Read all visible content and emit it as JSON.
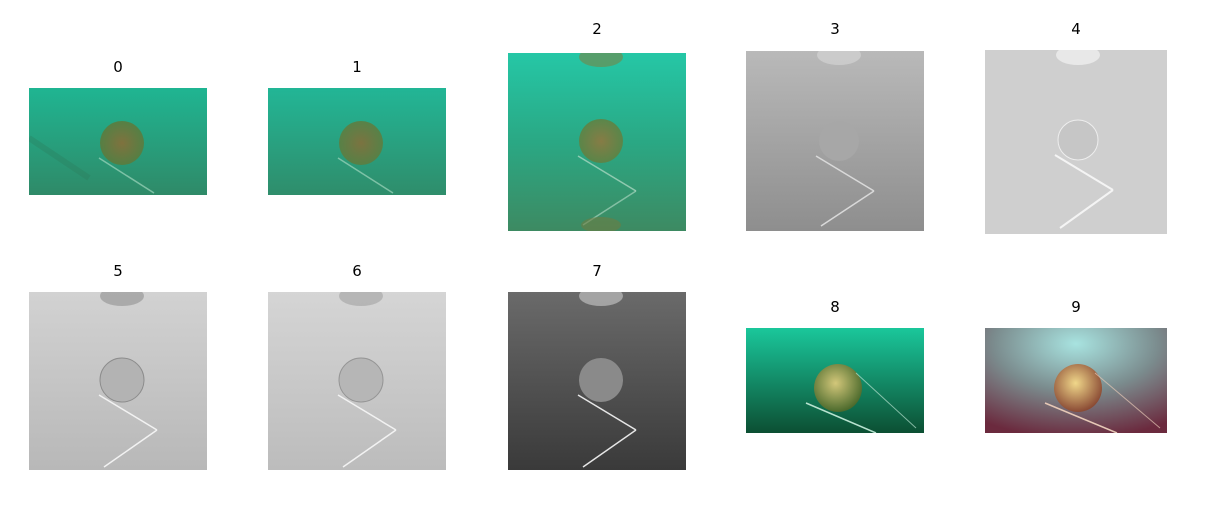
{
  "figure": {
    "panels": [
      {
        "label": "0",
        "variant": "teal-wide-a"
      },
      {
        "label": "1",
        "variant": "teal-wide-b"
      },
      {
        "label": "2",
        "variant": "teal-square"
      },
      {
        "label": "3",
        "variant": "gray-square"
      },
      {
        "label": "4",
        "variant": "noisy-light-square"
      },
      {
        "label": "5",
        "variant": "light-gray-square"
      },
      {
        "label": "6",
        "variant": "light-gray-square-smooth"
      },
      {
        "label": "7",
        "variant": "dark-gray-square"
      },
      {
        "label": "8",
        "variant": "green-wide-enhanced"
      },
      {
        "label": "9",
        "variant": "red-teal-wide"
      }
    ]
  }
}
